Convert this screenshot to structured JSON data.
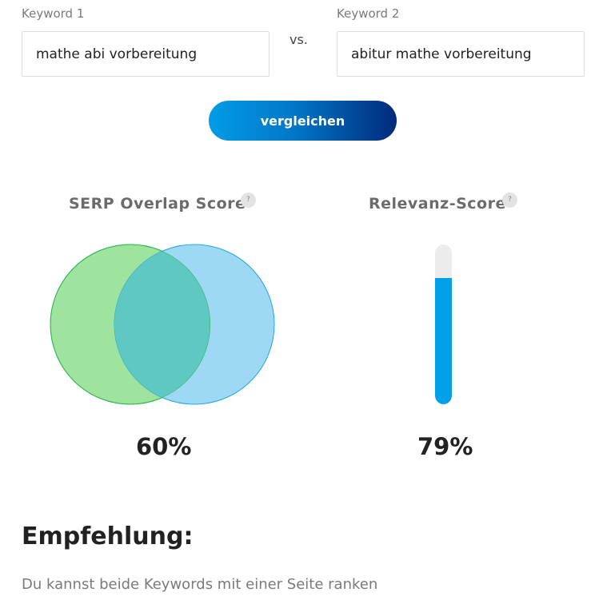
{
  "form": {
    "keyword1": {
      "label": "Keyword 1",
      "value": "mathe abi vorbereitung"
    },
    "keyword2": {
      "label": "Keyword 2",
      "value": "abitur mathe vorbereitung"
    },
    "vs_label": "vs.",
    "compare_button": "vergleichen"
  },
  "scores": {
    "serp_overlap": {
      "title": "SERP Overlap Score",
      "help": "?",
      "value": 60,
      "value_text": "60%",
      "colors": {
        "left": "#9ee49e",
        "right": "#9ed8f5",
        "overlap": "#60c8c2"
      }
    },
    "relevance": {
      "title": "Relevanz-Score",
      "help": "?",
      "value": 79,
      "value_text": "79%",
      "colors": {
        "fill": "#03a0ea",
        "track": "#ececec"
      }
    }
  },
  "recommendation": {
    "title": "Empfehlung:",
    "text": "Du kannst beide Keywords mit einer Seite ranken"
  }
}
